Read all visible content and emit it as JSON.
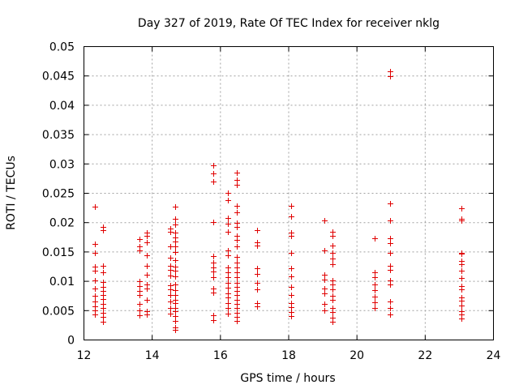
{
  "chart_data": {
    "type": "scatter",
    "title": "Day 327 of 2019, Rate Of TEC Index for receiver nklg",
    "xlabel": "GPS time / hours",
    "ylabel": "ROTI / TECUs",
    "xlim": [
      12,
      24
    ],
    "ylim": [
      0,
      0.05
    ],
    "xticks": [
      12,
      14,
      16,
      18,
      20,
      22,
      24
    ],
    "xtick_labels": [
      "12",
      "14",
      "16",
      "18",
      "20",
      "22",
      "24"
    ],
    "yticks": [
      0,
      0.005,
      0.01,
      0.015,
      0.02,
      0.025,
      0.03,
      0.035,
      0.04,
      0.045,
      0.05
    ],
    "ytick_labels": [
      "0",
      "0.005",
      "0.01",
      "0.015",
      "0.02",
      "0.025",
      "0.03",
      "0.035",
      "0.04",
      "0.045",
      "0.05"
    ],
    "grid": true,
    "marker": "+",
    "color": "#e00000",
    "series": [
      {
        "name": "ROTI",
        "points": [
          [
            12.33,
            0.0227
          ],
          [
            12.33,
            0.0164
          ],
          [
            12.33,
            0.0149
          ],
          [
            12.33,
            0.0125
          ],
          [
            12.33,
            0.0118
          ],
          [
            12.33,
            0.0101
          ],
          [
            12.33,
            0.0088
          ],
          [
            12.33,
            0.0075
          ],
          [
            12.33,
            0.0066
          ],
          [
            12.33,
            0.0058
          ],
          [
            12.33,
            0.005
          ],
          [
            12.33,
            0.0043
          ],
          [
            12.55,
            0.0193
          ],
          [
            12.55,
            0.0187
          ],
          [
            12.55,
            0.0126
          ],
          [
            12.55,
            0.0116
          ],
          [
            12.55,
            0.0099
          ],
          [
            12.55,
            0.0091
          ],
          [
            12.55,
            0.0084
          ],
          [
            12.55,
            0.0077
          ],
          [
            12.55,
            0.007
          ],
          [
            12.55,
            0.0062
          ],
          [
            12.55,
            0.0055
          ],
          [
            12.55,
            0.0046
          ],
          [
            12.55,
            0.004
          ],
          [
            12.55,
            0.0031
          ],
          [
            13.62,
            0.0172
          ],
          [
            13.62,
            0.016
          ],
          [
            13.62,
            0.0152
          ],
          [
            13.62,
            0.01
          ],
          [
            13.62,
            0.0092
          ],
          [
            13.62,
            0.0083
          ],
          [
            13.62,
            0.0076
          ],
          [
            13.62,
            0.0061
          ],
          [
            13.62,
            0.0051
          ],
          [
            13.62,
            0.0042
          ],
          [
            13.85,
            0.0183
          ],
          [
            13.85,
            0.0178
          ],
          [
            13.85,
            0.0167
          ],
          [
            13.85,
            0.0144
          ],
          [
            13.85,
            0.0126
          ],
          [
            13.85,
            0.0111
          ],
          [
            13.85,
            0.0094
          ],
          [
            13.85,
            0.0088
          ],
          [
            13.85,
            0.0068
          ],
          [
            13.85,
            0.0049
          ],
          [
            13.85,
            0.0044
          ],
          [
            14.52,
            0.019
          ],
          [
            14.52,
            0.0184
          ],
          [
            14.52,
            0.016
          ],
          [
            14.52,
            0.014
          ],
          [
            14.52,
            0.0127
          ],
          [
            14.52,
            0.0119
          ],
          [
            14.52,
            0.011
          ],
          [
            14.52,
            0.0093
          ],
          [
            14.52,
            0.0087
          ],
          [
            14.52,
            0.0076
          ],
          [
            14.52,
            0.0066
          ],
          [
            14.52,
            0.0054
          ],
          [
            14.52,
            0.0045
          ],
          [
            14.67,
            0.0227
          ],
          [
            14.67,
            0.0207
          ],
          [
            14.67,
            0.0197
          ],
          [
            14.67,
            0.0183
          ],
          [
            14.67,
            0.0175
          ],
          [
            14.67,
            0.0168
          ],
          [
            14.67,
            0.016
          ],
          [
            14.67,
            0.015
          ],
          [
            14.67,
            0.0136
          ],
          [
            14.67,
            0.0125
          ],
          [
            14.67,
            0.0118
          ],
          [
            14.67,
            0.0108
          ],
          [
            14.67,
            0.0094
          ],
          [
            14.67,
            0.0085
          ],
          [
            14.67,
            0.0076
          ],
          [
            14.67,
            0.0069
          ],
          [
            14.67,
            0.0063
          ],
          [
            14.67,
            0.0055
          ],
          [
            14.67,
            0.0049
          ],
          [
            14.67,
            0.0041
          ],
          [
            14.67,
            0.0033
          ],
          [
            14.67,
            0.0022
          ],
          [
            14.67,
            0.0017
          ],
          [
            15.8,
            0.0297
          ],
          [
            15.8,
            0.0284
          ],
          [
            15.8,
            0.027
          ],
          [
            15.8,
            0.0201
          ],
          [
            15.8,
            0.0143
          ],
          [
            15.8,
            0.0132
          ],
          [
            15.8,
            0.0123
          ],
          [
            15.8,
            0.0117
          ],
          [
            15.8,
            0.0107
          ],
          [
            15.8,
            0.0088
          ],
          [
            15.8,
            0.0081
          ],
          [
            15.8,
            0.0042
          ],
          [
            15.8,
            0.0034
          ],
          [
            16.22,
            0.0251
          ],
          [
            16.22,
            0.0238
          ],
          [
            16.22,
            0.0208
          ],
          [
            16.22,
            0.0198
          ],
          [
            16.22,
            0.0184
          ],
          [
            16.22,
            0.0152
          ],
          [
            16.22,
            0.0145
          ],
          [
            16.22,
            0.0124
          ],
          [
            16.22,
            0.0116
          ],
          [
            16.22,
            0.0107
          ],
          [
            16.22,
            0.0098
          ],
          [
            16.22,
            0.0089
          ],
          [
            16.22,
            0.008
          ],
          [
            16.22,
            0.0072
          ],
          [
            16.22,
            0.0063
          ],
          [
            16.22,
            0.0055
          ],
          [
            16.22,
            0.0045
          ],
          [
            16.48,
            0.0285
          ],
          [
            16.48,
            0.0273
          ],
          [
            16.48,
            0.0265
          ],
          [
            16.48,
            0.0228
          ],
          [
            16.48,
            0.0217
          ],
          [
            16.48,
            0.02
          ],
          [
            16.48,
            0.0193
          ],
          [
            16.48,
            0.0178
          ],
          [
            16.48,
            0.017
          ],
          [
            16.48,
            0.016
          ],
          [
            16.48,
            0.0141
          ],
          [
            16.48,
            0.0132
          ],
          [
            16.48,
            0.0124
          ],
          [
            16.48,
            0.0116
          ],
          [
            16.48,
            0.0107
          ],
          [
            16.48,
            0.0098
          ],
          [
            16.48,
            0.0091
          ],
          [
            16.48,
            0.0083
          ],
          [
            16.48,
            0.0076
          ],
          [
            16.48,
            0.0069
          ],
          [
            16.48,
            0.0061
          ],
          [
            16.48,
            0.0054
          ],
          [
            16.48,
            0.0046
          ],
          [
            16.48,
            0.0039
          ],
          [
            16.48,
            0.0033
          ],
          [
            17.08,
            0.0187
          ],
          [
            17.08,
            0.0167
          ],
          [
            17.08,
            0.0161
          ],
          [
            17.08,
            0.0122
          ],
          [
            17.08,
            0.0113
          ],
          [
            17.08,
            0.0097
          ],
          [
            17.08,
            0.0086
          ],
          [
            17.08,
            0.0063
          ],
          [
            17.08,
            0.0058
          ],
          [
            18.08,
            0.0228
          ],
          [
            18.08,
            0.021
          ],
          [
            18.08,
            0.0183
          ],
          [
            18.08,
            0.0177
          ],
          [
            18.08,
            0.0148
          ],
          [
            18.08,
            0.0122
          ],
          [
            18.08,
            0.0108
          ],
          [
            18.08,
            0.009
          ],
          [
            18.08,
            0.0076
          ],
          [
            18.08,
            0.0063
          ],
          [
            18.08,
            0.0056
          ],
          [
            18.08,
            0.0047
          ],
          [
            18.08,
            0.0041
          ],
          [
            19.05,
            0.0204
          ],
          [
            19.05,
            0.0153
          ],
          [
            19.05,
            0.0111
          ],
          [
            19.05,
            0.0103
          ],
          [
            19.05,
            0.0088
          ],
          [
            19.05,
            0.008
          ],
          [
            19.05,
            0.0062
          ],
          [
            19.05,
            0.0051
          ],
          [
            19.28,
            0.0185
          ],
          [
            19.28,
            0.0178
          ],
          [
            19.28,
            0.0161
          ],
          [
            19.28,
            0.0148
          ],
          [
            19.28,
            0.0139
          ],
          [
            19.28,
            0.0129
          ],
          [
            19.28,
            0.0101
          ],
          [
            19.28,
            0.0094
          ],
          [
            19.28,
            0.0086
          ],
          [
            19.28,
            0.0075
          ],
          [
            19.28,
            0.0068
          ],
          [
            19.28,
            0.0055
          ],
          [
            19.28,
            0.0048
          ],
          [
            19.28,
            0.0038
          ],
          [
            19.28,
            0.0031
          ],
          [
            20.52,
            0.0173
          ],
          [
            20.52,
            0.0116
          ],
          [
            20.52,
            0.0107
          ],
          [
            20.52,
            0.0095
          ],
          [
            20.52,
            0.0085
          ],
          [
            20.52,
            0.0074
          ],
          [
            20.52,
            0.0064
          ],
          [
            20.52,
            0.0055
          ],
          [
            20.98,
            0.0458
          ],
          [
            20.98,
            0.045
          ],
          [
            20.98,
            0.0233
          ],
          [
            20.98,
            0.0204
          ],
          [
            20.98,
            0.0173
          ],
          [
            20.98,
            0.0165
          ],
          [
            20.98,
            0.0149
          ],
          [
            20.98,
            0.0126
          ],
          [
            20.98,
            0.012
          ],
          [
            20.98,
            0.0101
          ],
          [
            20.98,
            0.0094
          ],
          [
            20.98,
            0.0066
          ],
          [
            20.98,
            0.0055
          ],
          [
            20.98,
            0.0044
          ],
          [
            23.05,
            0.0225
          ],
          [
            23.05,
            0.0207
          ],
          [
            23.05,
            0.0204
          ],
          [
            23.05,
            0.0149
          ],
          [
            23.05,
            0.0147
          ],
          [
            23.05,
            0.0135
          ],
          [
            23.05,
            0.0129
          ],
          [
            23.05,
            0.0118
          ],
          [
            23.05,
            0.0105
          ],
          [
            23.05,
            0.0092
          ],
          [
            23.05,
            0.0087
          ],
          [
            23.05,
            0.0072
          ],
          [
            23.05,
            0.0067
          ],
          [
            23.05,
            0.0059
          ],
          [
            23.05,
            0.0049
          ],
          [
            23.05,
            0.0043
          ],
          [
            23.05,
            0.0037
          ]
        ]
      }
    ]
  }
}
